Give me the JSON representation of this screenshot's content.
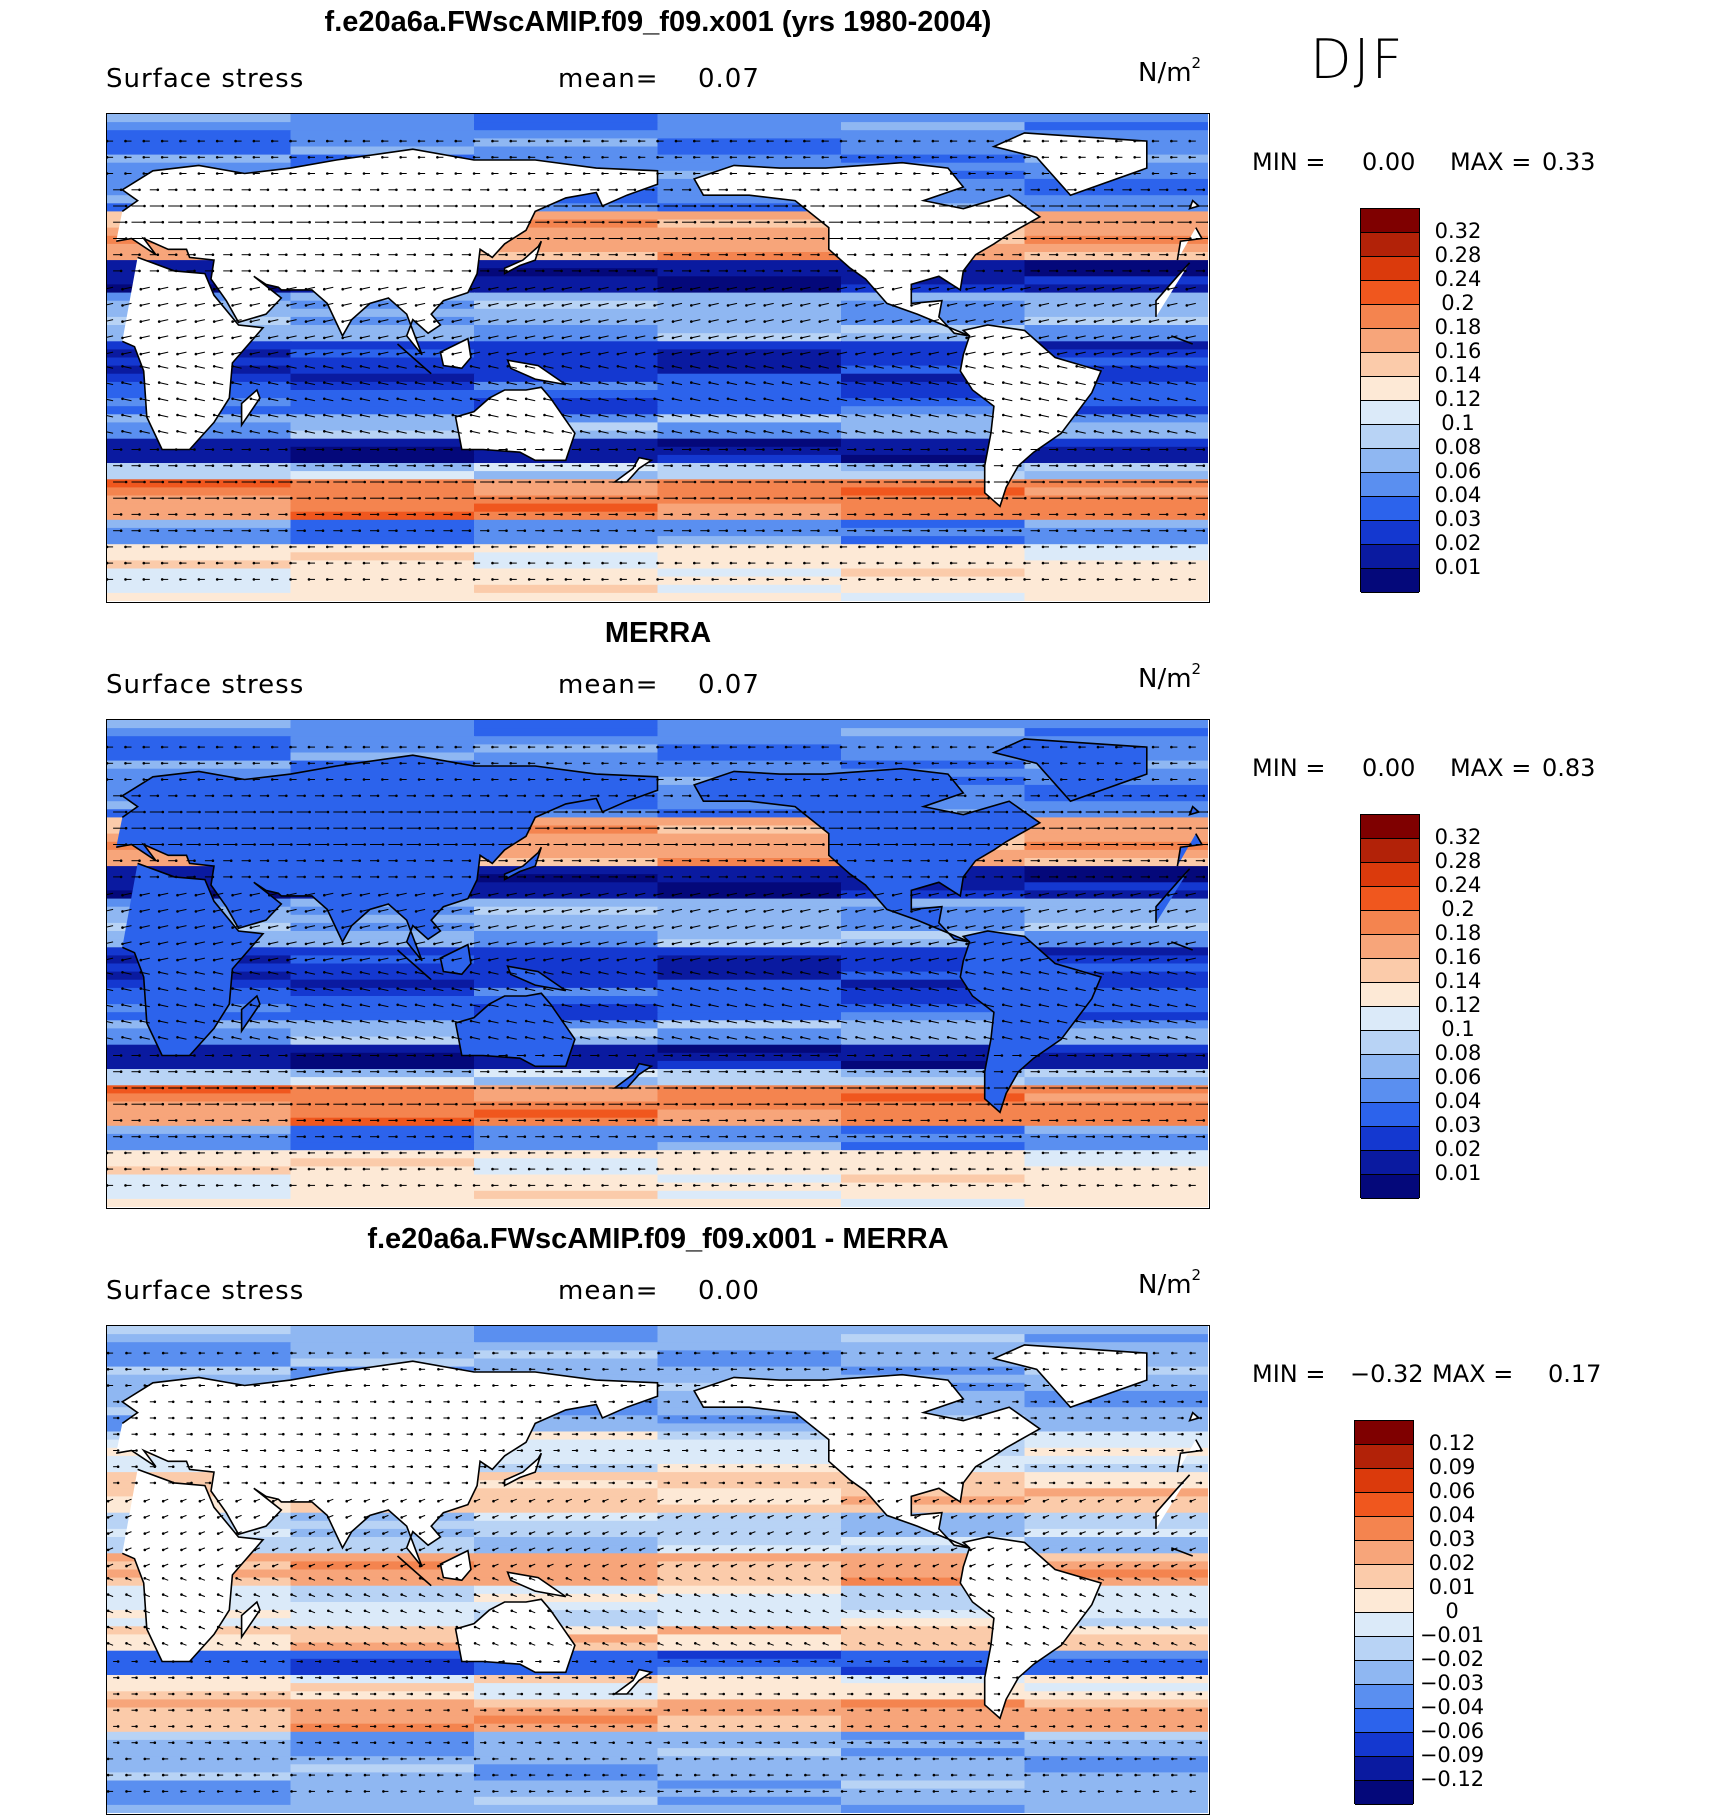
{
  "season": "DJF",
  "panels": [
    {
      "title": "f.e20a6a.FWscAMIP.f09_f09.x001 (yrs 1980-2004)",
      "variable": "Surface stress",
      "mean_label": "mean=",
      "mean_value": "0.07",
      "units": "N/m",
      "units_exp": "2",
      "min_label": "MIN =",
      "min_value": "0.00",
      "max_label": "MAX =",
      "max_value": "0.33",
      "colorbar_labels": [
        "0.32",
        "0.28",
        "0.24",
        "0.2",
        "0.18",
        "0.16",
        "0.14",
        "0.12",
        "0.1",
        "0.08",
        "0.06",
        "0.04",
        "0.03",
        "0.02",
        "0.01"
      ],
      "colors": [
        "#7f0000",
        "#b22208",
        "#db3a0c",
        "#f0571e",
        "#f4844f",
        "#f7a57a",
        "#fbcbaa",
        "#fde9d6",
        "#dbeaf9",
        "#b8d3f5",
        "#8fb7f2",
        "#5a8ff0",
        "#2c63ec",
        "#1438d0",
        "#0a1aa0",
        "#04087a"
      ],
      "field": "model"
    },
    {
      "title": "MERRA",
      "variable": "Surface stress",
      "mean_label": "mean=",
      "mean_value": "0.07",
      "units": "N/m",
      "units_exp": "2",
      "min_label": "MIN =",
      "min_value": "0.00",
      "max_label": "MAX =",
      "max_value": "0.83",
      "colorbar_labels": [
        "0.32",
        "0.28",
        "0.24",
        "0.2",
        "0.18",
        "0.16",
        "0.14",
        "0.12",
        "0.1",
        "0.08",
        "0.06",
        "0.04",
        "0.03",
        "0.02",
        "0.01"
      ],
      "colors": [
        "#7f0000",
        "#b22208",
        "#db3a0c",
        "#f0571e",
        "#f4844f",
        "#f7a57a",
        "#fbcbaa",
        "#fde9d6",
        "#dbeaf9",
        "#b8d3f5",
        "#8fb7f2",
        "#5a8ff0",
        "#2c63ec",
        "#1438d0",
        "#0a1aa0",
        "#04087a"
      ],
      "field": "obs"
    },
    {
      "title": "f.e20a6a.FWscAMIP.f09_f09.x001 - MERRA",
      "variable": "Surface stress",
      "mean_label": "mean=",
      "mean_value": "0.00",
      "units": "N/m",
      "units_exp": "2",
      "min_label": "MIN =",
      "min_value": "−0.32",
      "max_label": "MAX =",
      "max_value": "0.17",
      "colorbar_labels": [
        "0.12",
        "0.09",
        "0.06",
        "0.04",
        "0.03",
        "0.02",
        "0.01",
        "0",
        "−0.01",
        "−0.02",
        "−0.03",
        "−0.04",
        "−0.06",
        "−0.09",
        "−0.12"
      ],
      "colors": [
        "#7f0000",
        "#b22208",
        "#db3a0c",
        "#f0571e",
        "#f4844f",
        "#f7a57a",
        "#fbcbaa",
        "#fde9d6",
        "#dbeaf9",
        "#b8d3f5",
        "#8fb7f2",
        "#5a8ff0",
        "#2c63ec",
        "#1438d0",
        "#0a1aa0",
        "#04087a"
      ],
      "field": "diff"
    }
  ]
}
